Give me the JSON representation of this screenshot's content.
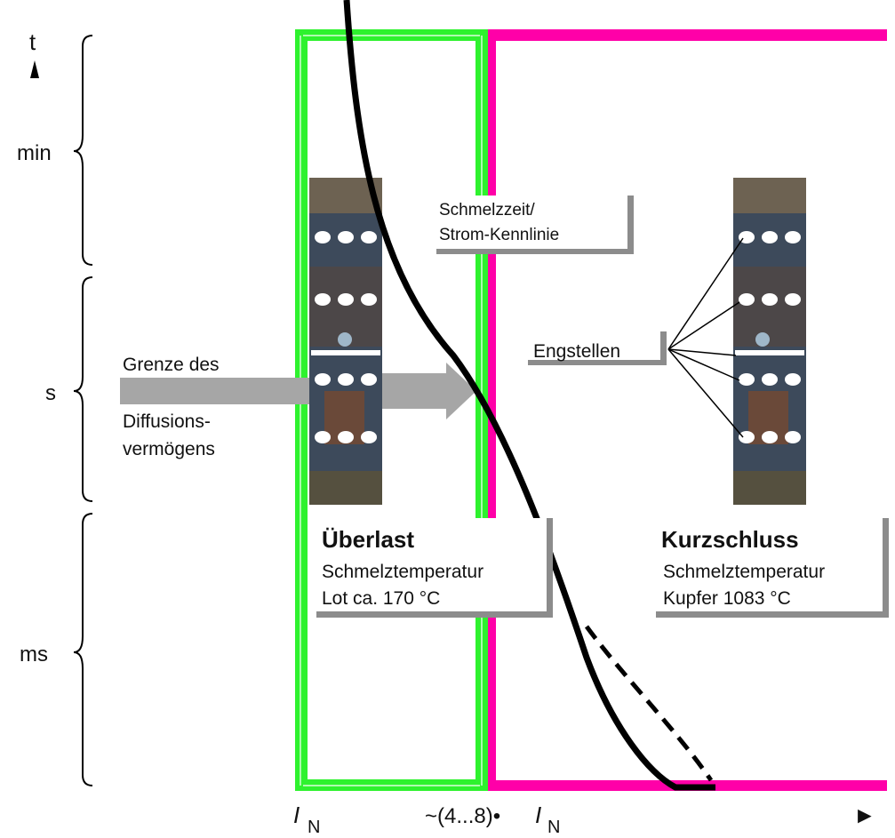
{
  "axis": {
    "y_label": "t",
    "x_arrow": "►",
    "y_ranges": [
      "min",
      "s",
      "ms"
    ],
    "x_ticks": {
      "nominal_main": "I",
      "nominal_sub": "N",
      "multiple_prefix": "~(4...8)•",
      "multiple_main": "I",
      "multiple_sub": "N"
    }
  },
  "curve_box": {
    "line1": "Schmelzzeit/",
    "line2": "Strom-Kennlinie"
  },
  "diffusion_note": {
    "line1": "Grenze des",
    "line2": "Diffusions-",
    "line3": "vermögens"
  },
  "overload_box": {
    "title": "Überlast",
    "line1": "Schmelztemperatur",
    "line2": "Lot ca. 170 °C"
  },
  "shortcircuit_box": {
    "title": "Kurzschluss",
    "line1": "Schmelztemperatur",
    "line2": "Kupfer 1083 °C"
  },
  "constrictions_label": "Engstellen",
  "colors": {
    "overload_frame": "#2ef22e",
    "shortcircuit_frame": "#ff00a8",
    "arrow": "#a6a6a6",
    "curve": "#000000"
  }
}
